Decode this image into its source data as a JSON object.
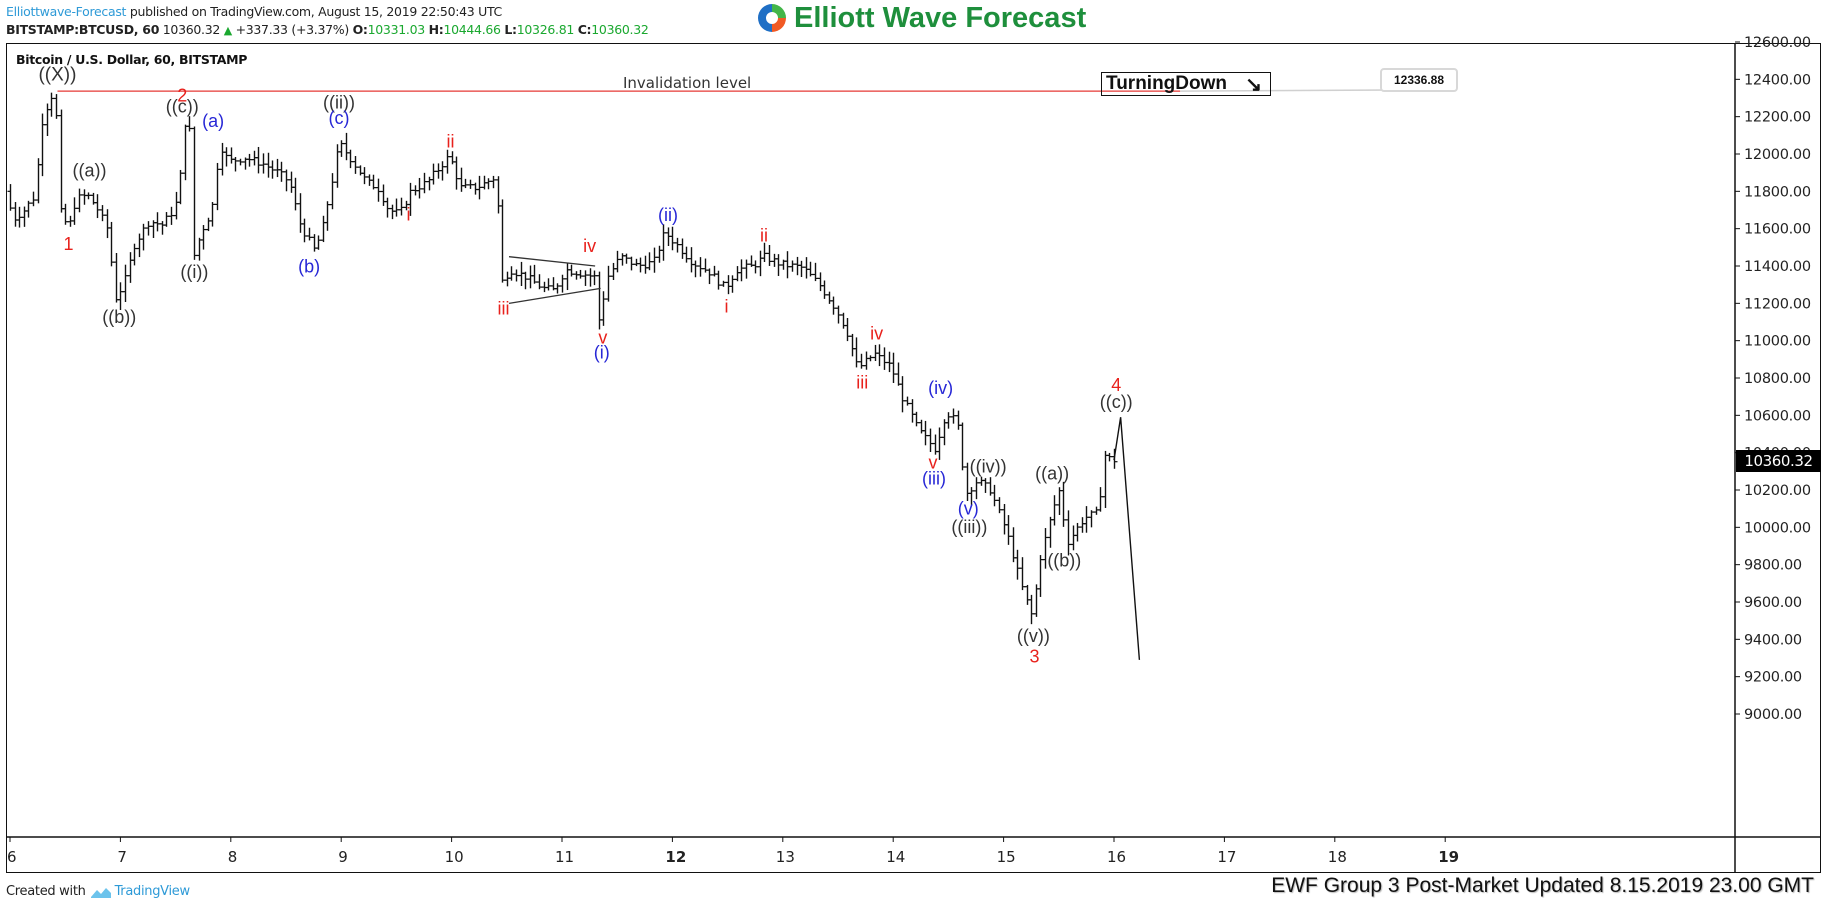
{
  "header": {
    "publisher": "Elliottwave-Forecast",
    "published_text": " published on TradingView.com, August 15, 2019 22:50:43 UTC",
    "symbol": "BITSTAMP:BTCUSD, 60",
    "last": "10360.32",
    "change": "+337.33 (+3.37%)",
    "o_label": "O:",
    "o": "10331.03",
    "h_label": "H:",
    "h": "10444.66",
    "l_label": "L:",
    "l": "10326.81",
    "c_label": "C:",
    "c": "10360.32"
  },
  "logo": {
    "text": "Elliott Wave Forecast"
  },
  "chart_title": "Bitcoin / U.S. Dollar, 60, BITSTAMP",
  "turning_box": {
    "label": "TurningDown",
    "arrow": "↘"
  },
  "invalidation": {
    "label": "Invalidation level",
    "price": "12336.88",
    "value": 12336.88
  },
  "last_price_label": "10360.32",
  "footer": {
    "created_with": "Created with",
    "tradingview": "TradingView",
    "update_note": "EWF Group 3 Post-Market Updated 8.15.2019 23.00 GMT"
  },
  "colors": {
    "bar": "#111111",
    "invalidation_line": "#e53935",
    "red_label": "#e8211c",
    "blue_label": "#2727d6",
    "black_label": "#333333",
    "logo_green": "#1e8f3c",
    "link_blue": "#2e9ad7",
    "up_green": "#1aa82f"
  },
  "chart_data": {
    "type": "ohlc",
    "title": "Bitcoin / U.S. Dollar, 60, BITSTAMP",
    "xlabel": "",
    "ylabel": "",
    "ylim": [
      9000,
      12600
    ],
    "xlim": [
      6,
      19.4
    ],
    "y_ticks": [
      "12600.00",
      "12400.00",
      "12200.00",
      "12000.00",
      "11800.00",
      "11600.00",
      "11400.00",
      "11200.00",
      "11000.00",
      "10800.00",
      "10600.00",
      "10400.00",
      "10200.00",
      "10000.00",
      "9800.00",
      "9600.00",
      "9400.00",
      "9200.00",
      "9000.00"
    ],
    "x_ticks": [
      {
        "day": 6,
        "label": "6",
        "bold": false
      },
      {
        "day": 7,
        "label": "7",
        "bold": false
      },
      {
        "day": 8,
        "label": "8",
        "bold": false
      },
      {
        "day": 9,
        "label": "9",
        "bold": false
      },
      {
        "day": 10,
        "label": "10",
        "bold": false
      },
      {
        "day": 11,
        "label": "11",
        "bold": false
      },
      {
        "day": 12,
        "label": "12",
        "bold": true
      },
      {
        "day": 13,
        "label": "13",
        "bold": false
      },
      {
        "day": 14,
        "label": "14",
        "bold": false
      },
      {
        "day": 15,
        "label": "15",
        "bold": false
      },
      {
        "day": 16,
        "label": "16",
        "bold": false
      },
      {
        "day": 17,
        "label": "17",
        "bold": false
      },
      {
        "day": 18,
        "label": "18",
        "bold": false
      },
      {
        "day": 19,
        "label": "19",
        "bold": true
      }
    ],
    "grid": false,
    "last_price": 10360.32,
    "price_path_waypoints": [
      [
        5.98,
        11800
      ],
      [
        6.05,
        11650
      ],
      [
        6.15,
        11700
      ],
      [
        6.25,
        11780
      ],
      [
        6.3,
        12150
      ],
      [
        6.38,
        12300
      ],
      [
        6.43,
        12330
      ],
      [
        6.47,
        11700
      ],
      [
        6.55,
        11600
      ],
      [
        6.62,
        11760
      ],
      [
        6.72,
        11780
      ],
      [
        6.8,
        11720
      ],
      [
        6.9,
        11600
      ],
      [
        6.98,
        11230
      ],
      [
        7.05,
        11300
      ],
      [
        7.15,
        11520
      ],
      [
        7.28,
        11640
      ],
      [
        7.4,
        11620
      ],
      [
        7.5,
        11700
      ],
      [
        7.55,
        11780
      ],
      [
        7.6,
        12170
      ],
      [
        7.65,
        12120
      ],
      [
        7.67,
        11420
      ],
      [
        7.75,
        11580
      ],
      [
        7.85,
        11700
      ],
      [
        7.92,
        12050
      ],
      [
        8.0,
        11960
      ],
      [
        8.15,
        11980
      ],
      [
        8.3,
        11950
      ],
      [
        8.45,
        11900
      ],
      [
        8.55,
        11850
      ],
      [
        8.65,
        11620
      ],
      [
        8.78,
        11480
      ],
      [
        8.85,
        11600
      ],
      [
        8.92,
        11800
      ],
      [
        9.0,
        12060
      ],
      [
        9.1,
        11980
      ],
      [
        9.25,
        11850
      ],
      [
        9.35,
        11820
      ],
      [
        9.45,
        11700
      ],
      [
        9.55,
        11680
      ],
      [
        9.65,
        11800
      ],
      [
        9.8,
        11850
      ],
      [
        9.9,
        11920
      ],
      [
        10.0,
        11990
      ],
      [
        10.1,
        11820
      ],
      [
        10.25,
        11820
      ],
      [
        10.43,
        11880
      ],
      [
        10.46,
        11300
      ],
      [
        10.55,
        11380
      ],
      [
        10.7,
        11340
      ],
      [
        10.85,
        11280
      ],
      [
        10.95,
        11270
      ],
      [
        11.05,
        11380
      ],
      [
        11.2,
        11360
      ],
      [
        11.32,
        11340
      ],
      [
        11.36,
        11080
      ],
      [
        11.42,
        11330
      ],
      [
        11.55,
        11450
      ],
      [
        11.7,
        11400
      ],
      [
        11.85,
        11420
      ],
      [
        11.95,
        11580
      ],
      [
        12.05,
        11520
      ],
      [
        12.2,
        11420
      ],
      [
        12.35,
        11370
      ],
      [
        12.5,
        11280
      ],
      [
        12.6,
        11380
      ],
      [
        12.75,
        11400
      ],
      [
        12.85,
        11450
      ],
      [
        13.0,
        11410
      ],
      [
        13.2,
        11390
      ],
      [
        13.35,
        11300
      ],
      [
        13.5,
        11170
      ],
      [
        13.6,
        11050
      ],
      [
        13.7,
        10850
      ],
      [
        13.85,
        10930
      ],
      [
        14.0,
        10860
      ],
      [
        14.1,
        10700
      ],
      [
        14.25,
        10520
      ],
      [
        14.4,
        10420
      ],
      [
        14.5,
        10620
      ],
      [
        14.6,
        10560
      ],
      [
        14.68,
        10180
      ],
      [
        14.78,
        10250
      ],
      [
        14.9,
        10200
      ],
      [
        15.05,
        9970
      ],
      [
        15.2,
        9650
      ],
      [
        15.28,
        9520
      ],
      [
        15.35,
        9830
      ],
      [
        15.45,
        10060
      ],
      [
        15.52,
        10200
      ],
      [
        15.6,
        9920
      ],
      [
        15.75,
        10050
      ],
      [
        15.88,
        10080
      ],
      [
        15.93,
        10390
      ],
      [
        16.0,
        10360
      ]
    ],
    "projection": [
      [
        16.0,
        10360
      ],
      [
        16.06,
        10590
      ],
      [
        16.23,
        9290
      ]
    ],
    "invalidation_line": {
      "price": 12336.88,
      "x_start": 6.43,
      "x_end": 16.6
    },
    "triangle": {
      "upper": [
        [
          10.52,
          11450
        ],
        [
          11.3,
          11400
        ]
      ],
      "lower": [
        [
          10.52,
          11200
        ],
        [
          11.35,
          11280
        ]
      ]
    },
    "wave_labels": [
      {
        "text": "((X))",
        "day": 6.43,
        "price": 12395,
        "color": "black",
        "size": 19
      },
      {
        "text": "1",
        "day": 6.53,
        "price": 11485,
        "color": "red",
        "size": 18
      },
      {
        "text": "((a))",
        "day": 6.72,
        "price": 11880,
        "color": "black",
        "size": 18
      },
      {
        "text": "((b))",
        "day": 6.99,
        "price": 11095,
        "color": "black",
        "size": 18
      },
      {
        "text": "2",
        "day": 7.56,
        "price": 12282,
        "color": "red",
        "size": 18
      },
      {
        "text": "((c))",
        "day": 7.56,
        "price": 12222,
        "color": "black",
        "size": 18
      },
      {
        "text": "((i))",
        "day": 7.67,
        "price": 11335,
        "color": "black",
        "size": 18
      },
      {
        "text": "(a)",
        "day": 7.84,
        "price": 12145,
        "color": "blue",
        "size": 18
      },
      {
        "text": "(b)",
        "day": 8.71,
        "price": 11365,
        "color": "blue",
        "size": 18
      },
      {
        "text": "((ii))",
        "day": 8.98,
        "price": 12245,
        "color": "black",
        "size": 18
      },
      {
        "text": "(c)",
        "day": 8.98,
        "price": 12160,
        "color": "blue",
        "size": 18
      },
      {
        "text": "i",
        "day": 9.61,
        "price": 11645,
        "color": "red",
        "size": 18
      },
      {
        "text": "ii",
        "day": 9.99,
        "price": 12035,
        "color": "red",
        "size": 18
      },
      {
        "text": "iii",
        "day": 10.47,
        "price": 11140,
        "color": "red",
        "size": 18
      },
      {
        "text": "iv",
        "day": 11.25,
        "price": 11475,
        "color": "red",
        "size": 18
      },
      {
        "text": "v",
        "day": 11.37,
        "price": 10985,
        "color": "red",
        "size": 18
      },
      {
        "text": "(i)",
        "day": 11.36,
        "price": 10905,
        "color": "blue",
        "size": 18
      },
      {
        "text": "(ii)",
        "day": 11.96,
        "price": 11640,
        "color": "blue",
        "size": 18
      },
      {
        "text": "i",
        "day": 12.49,
        "price": 11150,
        "color": "red",
        "size": 18
      },
      {
        "text": "ii",
        "day": 12.83,
        "price": 11530,
        "color": "red",
        "size": 18
      },
      {
        "text": "iii",
        "day": 13.72,
        "price": 10745,
        "color": "red",
        "size": 18
      },
      {
        "text": "iv",
        "day": 13.85,
        "price": 11005,
        "color": "red",
        "size": 18
      },
      {
        "text": "(iv)",
        "day": 14.43,
        "price": 10715,
        "color": "blue",
        "size": 18
      },
      {
        "text": "v",
        "day": 14.36,
        "price": 10315,
        "color": "red",
        "size": 18
      },
      {
        "text": "(iii)",
        "day": 14.37,
        "price": 10230,
        "color": "blue",
        "size": 18
      },
      {
        "text": "((iv))",
        "day": 14.86,
        "price": 10295,
        "color": "black",
        "size": 18
      },
      {
        "text": "(v)",
        "day": 14.68,
        "price": 10070,
        "color": "blue",
        "size": 18
      },
      {
        "text": "((iii))",
        "day": 14.69,
        "price": 9970,
        "color": "black",
        "size": 18
      },
      {
        "text": "((a))",
        "day": 15.44,
        "price": 10255,
        "color": "black",
        "size": 18
      },
      {
        "text": "((b))",
        "day": 15.55,
        "price": 9790,
        "color": "black",
        "size": 18
      },
      {
        "text": "((v))",
        "day": 15.27,
        "price": 9385,
        "color": "black",
        "size": 18
      },
      {
        "text": "3",
        "day": 15.28,
        "price": 9275,
        "color": "red",
        "size": 18
      },
      {
        "text": "4",
        "day": 16.02,
        "price": 10730,
        "color": "red",
        "size": 18
      },
      {
        "text": "((c))",
        "day": 16.02,
        "price": 10640,
        "color": "black",
        "size": 18
      }
    ]
  }
}
